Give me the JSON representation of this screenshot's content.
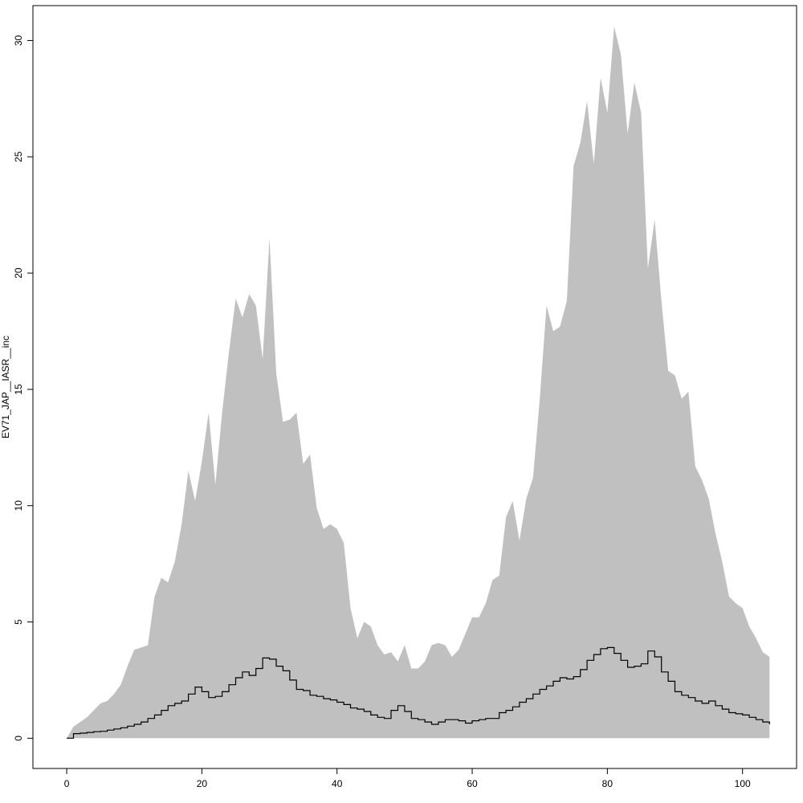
{
  "chart_data": {
    "type": "area",
    "title": "",
    "xlabel": "",
    "ylabel": "EV71_JAP__IASR__inc",
    "xlim": [
      -5,
      108
    ],
    "ylim": [
      -1.3,
      31.5
    ],
    "x_ticks": [
      0,
      20,
      40,
      60,
      80,
      100
    ],
    "y_ticks": [
      0,
      5,
      10,
      15,
      20,
      25,
      30
    ],
    "grid": false,
    "legend": "none",
    "colors": {
      "band": "#c0c0c0",
      "line": "#000000",
      "frame": "#000000"
    },
    "band": {
      "x": [
        0,
        1,
        2,
        3,
        4,
        5,
        6,
        7,
        8,
        9,
        10,
        11,
        12,
        13,
        14,
        15,
        16,
        17,
        18,
        19,
        20,
        21,
        22,
        23,
        24,
        25,
        26,
        27,
        28,
        29,
        30,
        31,
        32,
        33,
        34,
        35,
        36,
        37,
        38,
        39,
        40,
        41,
        42,
        43,
        44,
        45,
        46,
        47,
        48,
        49,
        50,
        51,
        52,
        53,
        54,
        55,
        56,
        57,
        58,
        59,
        60,
        61,
        62,
        63,
        64,
        65,
        66,
        67,
        68,
        69,
        70,
        71,
        72,
        73,
        74,
        75,
        76,
        77,
        78,
        79,
        80,
        81,
        82,
        83,
        84,
        85,
        86,
        87,
        88,
        89,
        90,
        91,
        92,
        93,
        94,
        95,
        96,
        97,
        98,
        99,
        100,
        101,
        102,
        103,
        104
      ],
      "upper": [
        0,
        0.5,
        0.7,
        0.9,
        1.2,
        1.5,
        1.6,
        1.9,
        2.3,
        3.1,
        3.8,
        3.9,
        4.0,
        6.1,
        6.9,
        6.7,
        7.6,
        9.2,
        11.5,
        10.2,
        11.9,
        14.0,
        10.9,
        14.0,
        16.6,
        18.9,
        18.1,
        19.1,
        18.6,
        16.3,
        21.5,
        15.7,
        13.6,
        13.7,
        14.0,
        11.8,
        12.2,
        9.9,
        9.0,
        9.2,
        9.0,
        8.4,
        5.6,
        4.3,
        5.0,
        4.8,
        4.0,
        3.6,
        3.7,
        3.3,
        4.0,
        3.0,
        3.0,
        3.3,
        4.0,
        4.1,
        4.0,
        3.5,
        3.8,
        4.5,
        5.2,
        5.2,
        5.8,
        6.8,
        7.0,
        9.5,
        10.2,
        8.5,
        10.3,
        11.2,
        14.6,
        18.6,
        17.5,
        17.7,
        18.8,
        24.6,
        25.6,
        27.4,
        24.7,
        28.4,
        26.9,
        30.6,
        29.4,
        26.0,
        28.2,
        26.9,
        20.2,
        22.3,
        18.8,
        15.8,
        15.6,
        14.6,
        14.9,
        11.7,
        11.1,
        10.3,
        8.8,
        7.6,
        6.1,
        5.8,
        5.6,
        4.8,
        4.3,
        3.7,
        3.5
      ],
      "lower": 0
    },
    "series": [
      {
        "style": "step",
        "x": [
          0,
          1,
          2,
          3,
          4,
          5,
          6,
          7,
          8,
          9,
          10,
          11,
          12,
          13,
          14,
          15,
          16,
          17,
          18,
          19,
          20,
          21,
          22,
          23,
          24,
          25,
          26,
          27,
          28,
          29,
          30,
          31,
          32,
          33,
          34,
          35,
          36,
          37,
          38,
          39,
          40,
          41,
          42,
          43,
          44,
          45,
          46,
          47,
          48,
          49,
          50,
          51,
          52,
          53,
          54,
          55,
          56,
          57,
          58,
          59,
          60,
          61,
          62,
          63,
          64,
          65,
          66,
          67,
          68,
          69,
          70,
          71,
          72,
          73,
          74,
          75,
          76,
          77,
          78,
          79,
          80,
          81,
          82,
          83,
          84,
          85,
          86,
          87,
          88,
          89,
          90,
          91,
          92,
          93,
          94,
          95,
          96,
          97,
          98,
          99,
          100,
          101,
          102,
          103,
          104
        ],
        "values": [
          0,
          0.2,
          0.22,
          0.25,
          0.28,
          0.3,
          0.35,
          0.4,
          0.45,
          0.52,
          0.6,
          0.7,
          0.85,
          1.0,
          1.2,
          1.4,
          1.5,
          1.6,
          1.9,
          2.2,
          2.0,
          1.75,
          1.8,
          2.0,
          2.3,
          2.6,
          2.85,
          2.7,
          3.0,
          3.45,
          3.4,
          3.1,
          2.9,
          2.5,
          2.1,
          2.05,
          1.85,
          1.8,
          1.7,
          1.65,
          1.55,
          1.45,
          1.3,
          1.25,
          1.15,
          1.0,
          0.9,
          0.85,
          1.2,
          1.4,
          1.15,
          0.85,
          0.8,
          0.7,
          0.6,
          0.7,
          0.8,
          0.8,
          0.75,
          0.65,
          0.75,
          0.8,
          0.85,
          0.85,
          1.1,
          1.2,
          1.35,
          1.55,
          1.7,
          1.9,
          2.1,
          2.25,
          2.45,
          2.6,
          2.55,
          2.65,
          2.95,
          3.35,
          3.6,
          3.85,
          3.9,
          3.65,
          3.35,
          3.05,
          3.1,
          3.2,
          3.75,
          3.5,
          2.85,
          2.45,
          2.0,
          1.85,
          1.75,
          1.6,
          1.5,
          1.6,
          1.4,
          1.25,
          1.1,
          1.05,
          1.0,
          0.9,
          0.8,
          0.7,
          0.6
        ]
      }
    ]
  }
}
